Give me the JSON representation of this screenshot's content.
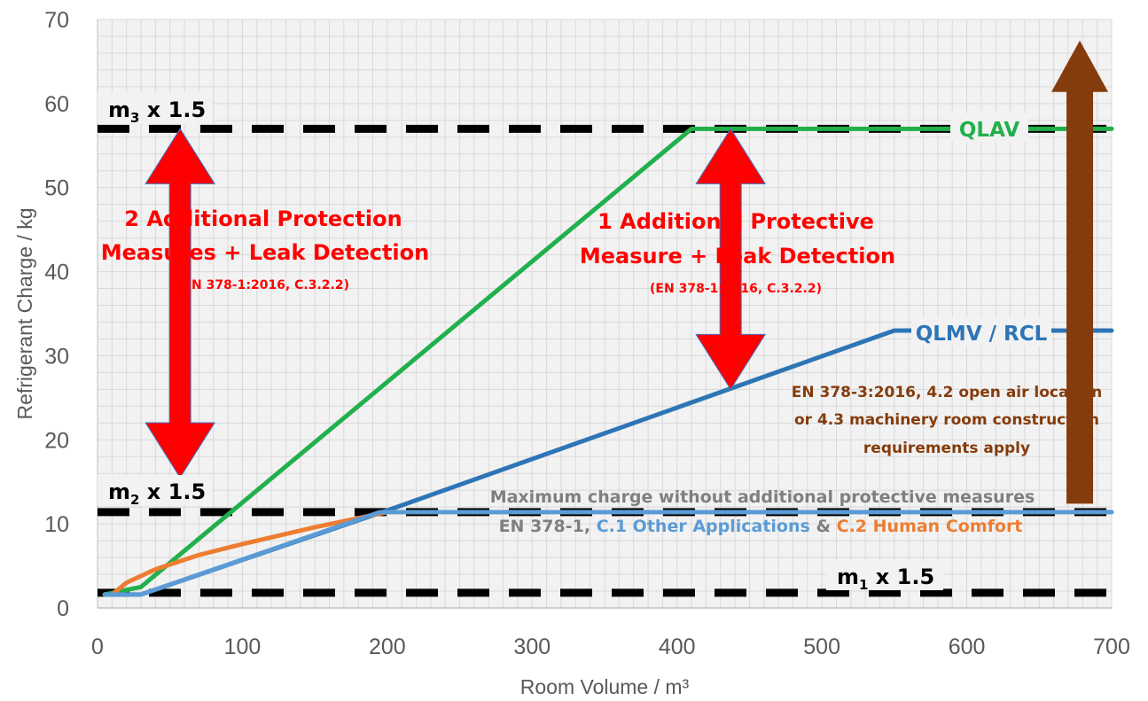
{
  "chart_data": {
    "type": "line",
    "xlabel": "Room Volume / m³",
    "ylabel": "Refrigerant Charge / kg",
    "xlim": [
      0,
      700
    ],
    "ylim": [
      0,
      70
    ],
    "x_ticks": [
      "0",
      "100",
      "200",
      "300",
      "400",
      "500",
      "600",
      "700"
    ],
    "y_ticks": [
      "0",
      "10",
      "20",
      "30",
      "40",
      "50",
      "60",
      "70"
    ],
    "grid": true,
    "series": [
      {
        "name": "QLAV",
        "color": "#21b04b",
        "x": [
          5,
          30,
          410,
          700
        ],
        "y": [
          1.6,
          2.5,
          57,
          57
        ]
      },
      {
        "name": "QLMV / RCL",
        "color": "#2e75b6",
        "x": [
          5,
          30,
          200,
          550,
          700
        ],
        "y": [
          1.6,
          1.6,
          11.6,
          33,
          33
        ]
      },
      {
        "name": "C.2 Human Comfort",
        "color": "#ed7d31",
        "x": [
          10,
          20,
          40,
          70,
          100,
          150,
          200
        ],
        "y": [
          1.6,
          3,
          4.6,
          6.3,
          7.6,
          9.6,
          11.4
        ]
      },
      {
        "name": "C.1 Other Applications",
        "color": "#5b9bd5",
        "x": [
          5,
          30,
          195,
          700
        ],
        "y": [
          1.6,
          1.6,
          11.4,
          11.4
        ]
      }
    ],
    "reference_lines": [
      {
        "label_main": "m",
        "label_sub": "3",
        "label_rest": " x 1.5",
        "y": 57
      },
      {
        "label_main": "m",
        "label_sub": "2",
        "label_rest": " x 1.5",
        "y": 11.4
      },
      {
        "label_main": "m",
        "label_sub": "1",
        "label_rest": " x 1.5",
        "y": 1.8
      }
    ],
    "annotations": {
      "zone_two": {
        "line1": "2 Additional Protection",
        "line2": "Measures + Leak Detection",
        "ref": "(EN 378-1:2016, C.3.2.2)"
      },
      "zone_one": {
        "line1": "1 Additional Protective",
        "line2": "Measure + Leak Detection",
        "ref": "(EN 378-1:2016, C.3.2.2)"
      },
      "open_air": {
        "line1": "EN 378-3:2016, 4.2 open air location",
        "line2": "or 4.3 machinery room construction",
        "line3": "requirements apply"
      },
      "max_charge": {
        "line1": "Maximum charge without additional protective measures",
        "prefix": "EN 378-1, ",
        "c1": "C.1 Other Applications",
        "amp": " & ",
        "c2": "C.2 Human Comfort"
      }
    },
    "colors": {
      "grid": "#d9d9d9",
      "plot_bg": "#f2f2f2",
      "red_arrow": "#ff0000",
      "brown_arrow": "#843c0c",
      "gray_text": "#7f7f7f",
      "dash": "#000000"
    }
  }
}
